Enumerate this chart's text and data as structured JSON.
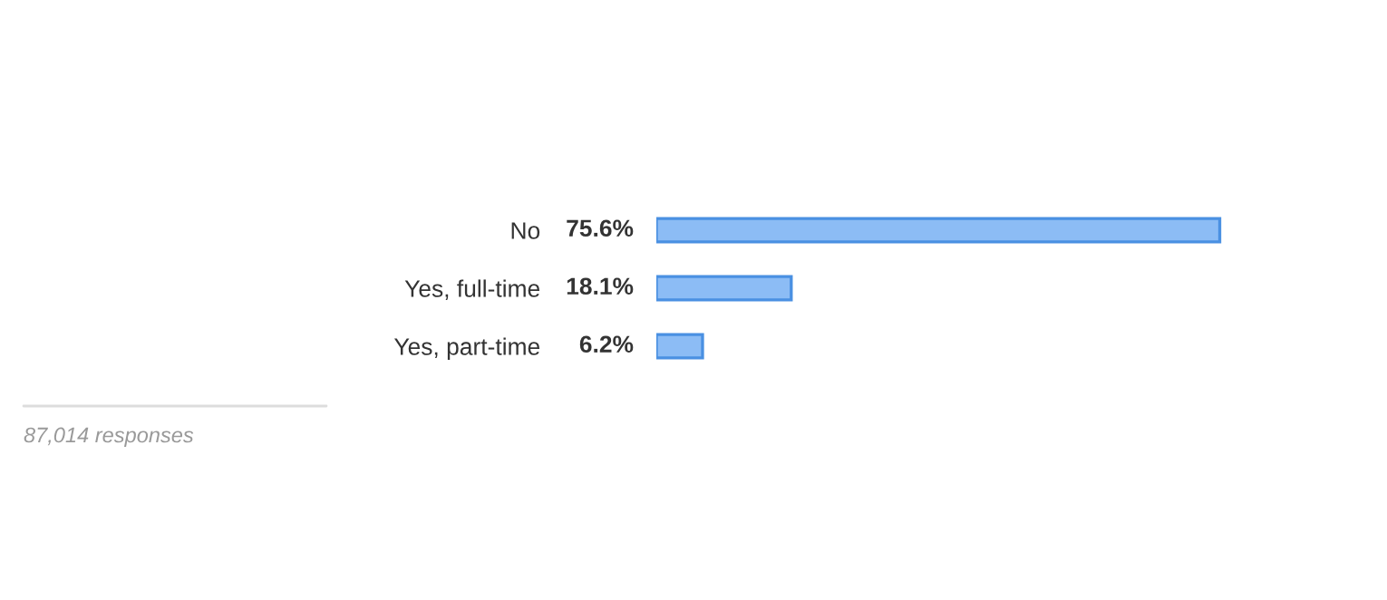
{
  "chart_data": {
    "type": "bar",
    "orientation": "horizontal",
    "categories": [
      "No",
      "Yes, full-time",
      "Yes, part-time"
    ],
    "values": [
      75.6,
      18.1,
      6.2
    ],
    "value_labels": [
      "75.6%",
      "18.1%",
      "6.2%"
    ],
    "color": "#8cbcf5",
    "annotations": [
      "87,014 responses"
    ]
  }
}
